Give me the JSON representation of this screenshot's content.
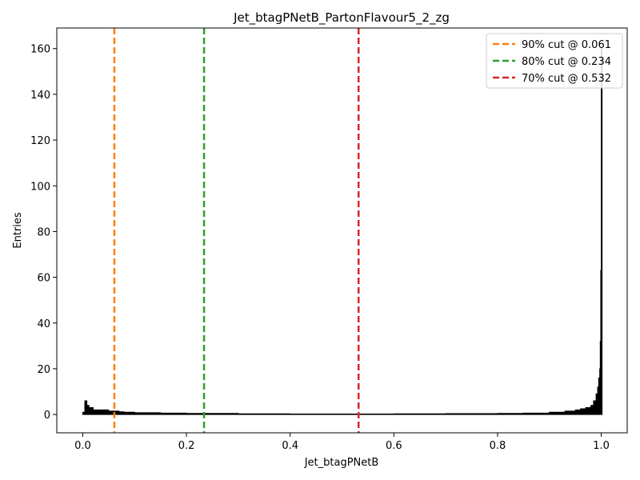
{
  "chart_data": {
    "type": "bar",
    "title": "Jet_btagPNetB_PartonFlavour5_2_zg",
    "xlabel": "Jet_btagPNetB",
    "ylabel": "Entries",
    "xlim": [
      -0.05,
      1.05
    ],
    "ylim": [
      -8,
      169
    ],
    "xticks": [
      {
        "value": 0.0,
        "label": "0.0"
      },
      {
        "value": 0.2,
        "label": "0.2"
      },
      {
        "value": 0.4,
        "label": "0.4"
      },
      {
        "value": 0.6,
        "label": "0.6"
      },
      {
        "value": 0.8,
        "label": "0.8"
      },
      {
        "value": 1.0,
        "label": "1.0"
      }
    ],
    "yticks": [
      {
        "value": 0,
        "label": "0"
      },
      {
        "value": 20,
        "label": "20"
      },
      {
        "value": 40,
        "label": "40"
      },
      {
        "value": 60,
        "label": "60"
      },
      {
        "value": 80,
        "label": "80"
      },
      {
        "value": 100,
        "label": "100"
      },
      {
        "value": 120,
        "label": "120"
      },
      {
        "value": 140,
        "label": "140"
      },
      {
        "value": 160,
        "label": "160"
      }
    ],
    "histogram": {
      "color": "#000000",
      "points": [
        [
          0.0,
          1
        ],
        [
          0.004,
          6
        ],
        [
          0.008,
          4
        ],
        [
          0.012,
          3
        ],
        [
          0.016,
          3
        ],
        [
          0.02,
          2
        ],
        [
          0.03,
          2
        ],
        [
          0.04,
          2
        ],
        [
          0.05,
          1.5
        ],
        [
          0.06,
          1.5
        ],
        [
          0.07,
          1.2
        ],
        [
          0.08,
          1
        ],
        [
          0.1,
          0.8
        ],
        [
          0.15,
          0.6
        ],
        [
          0.2,
          0.5
        ],
        [
          0.3,
          0.3
        ],
        [
          0.4,
          0.2
        ],
        [
          0.5,
          0.2
        ],
        [
          0.6,
          0.3
        ],
        [
          0.7,
          0.4
        ],
        [
          0.8,
          0.5
        ],
        [
          0.85,
          0.6
        ],
        [
          0.9,
          1
        ],
        [
          0.93,
          1.5
        ],
        [
          0.95,
          2
        ],
        [
          0.96,
          2.5
        ],
        [
          0.97,
          3
        ],
        [
          0.98,
          4
        ],
        [
          0.985,
          6
        ],
        [
          0.99,
          9
        ],
        [
          0.993,
          12
        ],
        [
          0.995,
          16
        ],
        [
          0.997,
          20
        ],
        [
          0.998,
          32
        ],
        [
          0.999,
          63
        ],
        [
          1.0,
          160
        ]
      ]
    },
    "cut_lines": [
      {
        "x": 0.061,
        "label": "90% cut @ 0.061",
        "color": "#ff7f0e"
      },
      {
        "x": 0.234,
        "label": "80% cut @ 0.234",
        "color": "#2ca02c"
      },
      {
        "x": 0.532,
        "label": "70% cut @ 0.532",
        "color": "#d62728"
      }
    ],
    "legend_position": "top-right",
    "grid": false
  }
}
